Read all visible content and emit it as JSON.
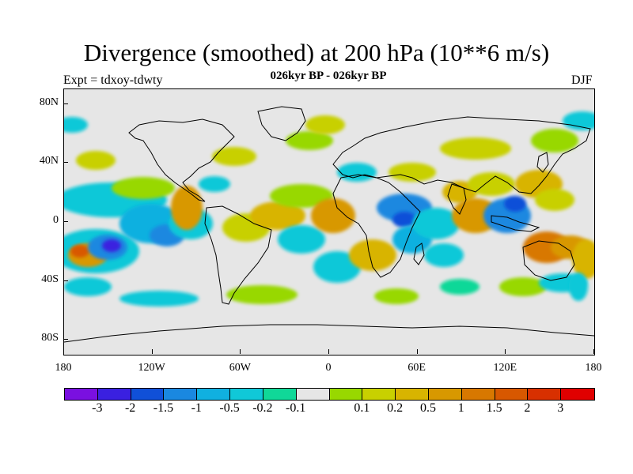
{
  "title": "Divergence (smoothed) at 200 hPa (10**6 m/s)",
  "subtitle": "026kyr BP - 026kyr BP",
  "experiment": "Expt = tdxoy-tdwty",
  "season": "DJF",
  "y_ticks": [
    {
      "label": "80N",
      "lat": 80
    },
    {
      "label": "40N",
      "lat": 40
    },
    {
      "label": "0",
      "lat": 0
    },
    {
      "label": "40S",
      "lat": -40
    },
    {
      "label": "80S",
      "lat": -80
    }
  ],
  "x_ticks": [
    {
      "label": "180",
      "lon": -180
    },
    {
      "label": "120W",
      "lon": -120
    },
    {
      "label": "60W",
      "lon": -60
    },
    {
      "label": "0",
      "lon": 0
    },
    {
      "label": "60E",
      "lon": 60
    },
    {
      "label": "120E",
      "lon": 120
    },
    {
      "label": "180",
      "lon": 180
    }
  ],
  "colorbar": {
    "colors": [
      "#7a10e0",
      "#3a20e0",
      "#1050d8",
      "#1a88e0",
      "#10b0e0",
      "#10c8d8",
      "#10d898",
      "#e6e6e6",
      "#98d800",
      "#c8d000",
      "#d8b400",
      "#d89800",
      "#d87800",
      "#d85800",
      "#d83000",
      "#e00000"
    ],
    "labels": [
      "-3",
      "-2",
      "-1.5",
      "-1",
      "-0.5",
      "-0.2",
      "-0.1",
      "0.1",
      "0.2",
      "0.5",
      "1",
      "1.5",
      "2",
      "3"
    ]
  },
  "map_background": "#e6e6e6"
}
